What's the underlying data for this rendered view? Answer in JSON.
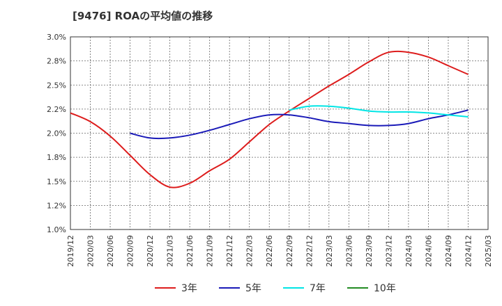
{
  "title": "[9476]  ROAの平均値の推移",
  "chart_data": {
    "type": "line",
    "title": "[9476]  ROAの平均値の推移",
    "xlabel": "",
    "ylabel": "",
    "x_ticks": [
      "2019/12",
      "2020/03",
      "2020/06",
      "2020/09",
      "2020/12",
      "2021/03",
      "2021/06",
      "2021/09",
      "2021/12",
      "2022/03",
      "2022/06",
      "2022/09",
      "2022/12",
      "2023/03",
      "2023/06",
      "2023/09",
      "2023/12",
      "2024/03",
      "2024/06",
      "2024/09",
      "2024/12",
      "2025/03"
    ],
    "y_ticks": [
      "1.0%",
      "1.2%",
      "1.5%",
      "1.8%",
      "2.0%",
      "2.2%",
      "2.5%",
      "2.8%",
      "3.0%"
    ],
    "ylim": [
      1.0,
      3.0
    ],
    "grid": true,
    "legend_position": "bottom",
    "series": [
      {
        "name": "3年",
        "color": "#dd1c1c",
        "x": [
          "2019/12",
          "2020/03",
          "2020/06",
          "2020/09",
          "2020/12",
          "2021/03",
          "2021/06",
          "2021/09",
          "2021/12",
          "2022/03",
          "2022/06",
          "2022/09",
          "2022/12",
          "2023/03",
          "2023/06",
          "2023/09",
          "2023/12",
          "2024/03",
          "2024/06",
          "2024/09",
          "2024/12"
        ],
        "values": [
          2.21,
          2.12,
          1.97,
          1.77,
          1.57,
          1.44,
          1.48,
          1.61,
          1.73,
          1.91,
          2.09,
          2.23,
          2.36,
          2.49,
          2.61,
          2.74,
          2.84,
          2.84,
          2.79,
          2.7,
          2.61
        ]
      },
      {
        "name": "5年",
        "color": "#1a1ab8",
        "x": [
          "2020/09",
          "2020/12",
          "2021/03",
          "2021/06",
          "2021/09",
          "2021/12",
          "2022/03",
          "2022/06",
          "2022/09",
          "2022/12",
          "2023/03",
          "2023/06",
          "2023/09",
          "2023/12",
          "2024/03",
          "2024/06",
          "2024/09",
          "2024/12"
        ],
        "values": [
          2.0,
          1.95,
          1.95,
          1.98,
          2.03,
          2.09,
          2.15,
          2.19,
          2.19,
          2.16,
          2.12,
          2.1,
          2.08,
          2.08,
          2.1,
          2.15,
          2.19,
          2.24
        ]
      },
      {
        "name": "7年",
        "color": "#00e5e5",
        "x": [
          "2022/09",
          "2022/12",
          "2023/03",
          "2023/06",
          "2023/09",
          "2023/12",
          "2024/03",
          "2024/06",
          "2024/09",
          "2024/12"
        ],
        "values": [
          2.24,
          2.28,
          2.28,
          2.26,
          2.23,
          2.22,
          2.22,
          2.21,
          2.19,
          2.17
        ]
      },
      {
        "name": "10年",
        "color": "#228b22",
        "x": [],
        "values": []
      }
    ]
  }
}
